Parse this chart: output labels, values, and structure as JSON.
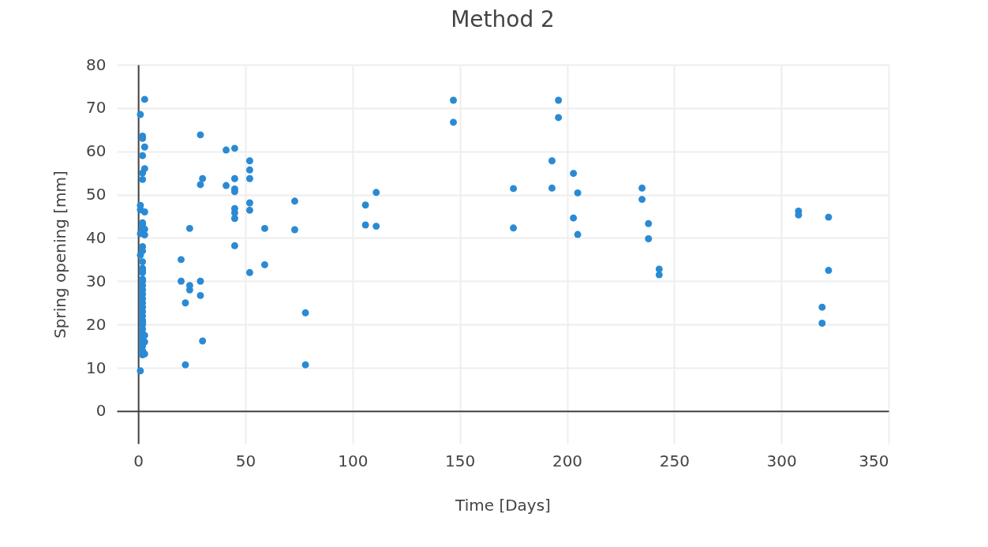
{
  "chart_data": {
    "type": "scatter",
    "title": "Method 2",
    "xlabel": "Time [Days]",
    "ylabel": "Spring opening [mm]",
    "xlim": [
      -10,
      350
    ],
    "xticks": [
      0,
      50,
      100,
      150,
      200,
      250,
      300,
      350
    ],
    "ylim": [
      -7.5,
      80
    ],
    "yticks": [
      0,
      10,
      20,
      30,
      40,
      50,
      60,
      70,
      80
    ],
    "grid": true,
    "marker": "circle",
    "series": [
      {
        "color": "#2a8ad4",
        "x": [
          1,
          3,
          2,
          2,
          2,
          2,
          2,
          3,
          3,
          1,
          1,
          1,
          1,
          1,
          2,
          2,
          2,
          2,
          2,
          2,
          2,
          2,
          2,
          2,
          2,
          2,
          2,
          2,
          2,
          2,
          2,
          2,
          2,
          2,
          2,
          2,
          2,
          2,
          2,
          2,
          2,
          2,
          2,
          2,
          3,
          3,
          3,
          3,
          3,
          3,
          20,
          20,
          22,
          22,
          24,
          24,
          24,
          29,
          29,
          29,
          29,
          30,
          30,
          41,
          41,
          45,
          45,
          45,
          45,
          45,
          45,
          45,
          45,
          52,
          52,
          52,
          52,
          52,
          52,
          59,
          59,
          73,
          73,
          78,
          78,
          106,
          106,
          111,
          111,
          147,
          147,
          175,
          175,
          193,
          193,
          196,
          196,
          203,
          203,
          205,
          205,
          235,
          235,
          238,
          238,
          243,
          243,
          308,
          308,
          322,
          322,
          319,
          319
        ],
        "values": [
          68.5,
          72,
          63.5,
          63,
          59,
          55,
          53.5,
          61,
          56,
          47.5,
          46.5,
          41,
          36,
          9.3,
          43.5,
          43,
          42,
          38,
          37,
          34.5,
          33,
          32.5,
          32,
          30.5,
          30,
          29,
          28,
          27,
          26,
          25,
          24,
          23,
          22,
          21,
          20.5,
          20,
          19,
          18,
          17,
          16.5,
          15.5,
          15,
          14,
          13,
          46,
          42,
          40.7,
          17.5,
          16,
          13.2,
          35,
          30,
          25,
          10.7,
          42.2,
          29,
          28,
          63.8,
          52.3,
          30,
          26.7,
          53.7,
          16.2,
          60.3,
          52.1,
          60.7,
          53.7,
          51.3,
          50.7,
          46.8,
          45.8,
          44.5,
          38.2,
          57.8,
          55.7,
          53.7,
          48.1,
          46.4,
          32,
          42.2,
          33.8,
          48.5,
          41.9,
          22.7,
          10.7,
          47.6,
          43,
          50.5,
          42.7,
          71.8,
          66.7,
          51.4,
          42.3,
          57.8,
          51.5,
          71.8,
          67.8,
          54.9,
          44.6,
          50.4,
          40.8,
          51.5,
          48.9,
          43.3,
          39.8,
          32.8,
          31.5,
          46.2,
          45.3,
          44.8,
          32.5,
          24,
          20.3
        ]
      }
    ]
  }
}
